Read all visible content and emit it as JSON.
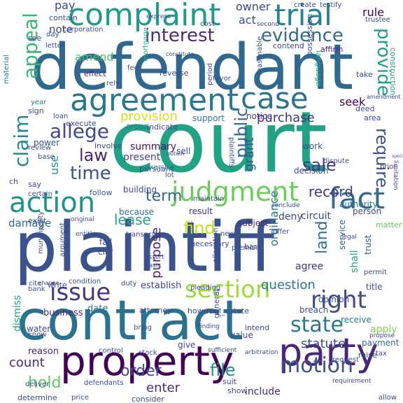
{
  "words": [
    {
      "t": "court",
      "c": "#22a284"
    },
    {
      "t": "plaintiff",
      "c": "#3b528b"
    },
    {
      "t": "defendant",
      "c": "#31688e"
    },
    {
      "t": "contract",
      "c": "#2c728e"
    },
    {
      "t": "property",
      "c": "#440154"
    },
    {
      "t": "party",
      "c": "#482777"
    },
    {
      "t": "agreement",
      "c": "#2a788e"
    },
    {
      "t": "complaint",
      "c": "#1e9b8a"
    },
    {
      "t": "trial",
      "c": "#26828e"
    },
    {
      "t": "case",
      "c": "#2c728e"
    },
    {
      "t": "judgment",
      "c": "#6ccd5a"
    },
    {
      "t": "action",
      "c": "#20928c"
    },
    {
      "t": "fact",
      "c": "#2f6c8e"
    },
    {
      "t": "issue",
      "c": "#443983"
    },
    {
      "t": "section",
      "c": "#9fda3a"
    },
    {
      "t": "right",
      "c": "#3e4a89"
    },
    {
      "t": "state",
      "c": "#2a788e"
    },
    {
      "t": "motion",
      "c": "#3b528b"
    },
    {
      "t": "interest",
      "c": "#472d7b"
    },
    {
      "t": "evidence",
      "c": "#31688e"
    },
    {
      "t": "provide",
      "c": "#1f9e89"
    },
    {
      "t": "claim",
      "c": "#25858e"
    },
    {
      "t": "appeal",
      "c": "#35b779"
    },
    {
      "t": "allege",
      "c": "#3e4a89"
    },
    {
      "t": "time",
      "c": "#3b528b"
    },
    {
      "t": "law",
      "c": "#482475"
    },
    {
      "t": "public",
      "c": "#31688e"
    },
    {
      "t": "sale",
      "c": "#453781"
    },
    {
      "t": "require",
      "c": "#3b528b"
    },
    {
      "t": "record",
      "c": "#443983"
    },
    {
      "t": "term",
      "c": "#31688e"
    },
    {
      "t": "lease",
      "c": "#22a884"
    },
    {
      "t": "find",
      "c": "#c2df23"
    },
    {
      "t": "land",
      "c": "#2c728e"
    },
    {
      "t": "order",
      "c": "#3e4a89"
    },
    {
      "t": "file",
      "c": "#20928c"
    },
    {
      "t": "hold",
      "c": "#5ec962"
    },
    {
      "t": "count",
      "c": "#482878"
    },
    {
      "t": "statute",
      "c": "#3e4a89"
    },
    {
      "t": "question",
      "c": "#2a788e"
    },
    {
      "t": "purchase",
      "c": "#46337e"
    },
    {
      "t": "provision",
      "c": "#d2e21b"
    },
    {
      "t": "amend",
      "c": "#4ac16d"
    },
    {
      "t": "grant",
      "c": "#38588c"
    },
    {
      "t": "purpose",
      "c": "#482475"
    },
    {
      "t": "pay",
      "c": "#3e4a89"
    },
    {
      "t": "use",
      "c": "#21918c"
    },
    {
      "t": "ordinance",
      "c": "#2a788e"
    },
    {
      "t": "rule",
      "c": "#440154"
    },
    {
      "t": "owner",
      "c": "#414487"
    },
    {
      "t": "act",
      "c": "#3b528b"
    },
    {
      "t": "seek",
      "c": "#440154"
    },
    {
      "t": "note",
      "c": "#3e4a89"
    },
    {
      "t": "damage",
      "c": "#31688e"
    },
    {
      "t": "summary",
      "c": "#471063"
    },
    {
      "t": "present",
      "c": "#414487"
    },
    {
      "t": "building",
      "c": "#3e4a89"
    },
    {
      "t": "because",
      "c": "#2c728e"
    },
    {
      "t": "result",
      "c": "#482878"
    },
    {
      "t": "subject",
      "c": "#46337e"
    },
    {
      "t": "deny",
      "c": "#3e4a89"
    },
    {
      "t": "circuit",
      "c": "#3e4a89"
    },
    {
      "t": "agree",
      "c": "#46337e"
    },
    {
      "t": "service",
      "c": "#31688e"
    },
    {
      "t": "trust",
      "c": "#3b528b"
    },
    {
      "t": "shall",
      "c": "#1f9e89"
    },
    {
      "t": "title",
      "c": "#3b528b"
    },
    {
      "t": "breach",
      "c": "#3e4a89"
    },
    {
      "t": "business",
      "c": "#482878"
    },
    {
      "t": "date",
      "c": "#2c728e"
    },
    {
      "t": "establish",
      "c": "#414487"
    },
    {
      "t": "opinion",
      "c": "#3e4a89"
    },
    {
      "t": "receive",
      "c": "#2a788e"
    },
    {
      "t": "payment",
      "c": "#31688e"
    },
    {
      "t": "apply",
      "c": "#7fd34e"
    },
    {
      "t": "enter",
      "c": "#472c7a"
    },
    {
      "t": "include",
      "c": "#482878"
    },
    {
      "t": "dismiss",
      "c": "#1fa088"
    },
    {
      "t": "reason",
      "c": "#482878"
    },
    {
      "t": "support",
      "c": "#2a788e"
    },
    {
      "t": "notice",
      "c": "#472d7b"
    },
    {
      "t": "sell",
      "c": "#3e4a89"
    },
    {
      "t": "authority",
      "c": "#2a788e"
    },
    {
      "t": "decision",
      "c": "#3e4a89"
    },
    {
      "t": "person",
      "c": "#3e4a89"
    },
    {
      "t": "matter",
      "c": "#5ec962"
    },
    {
      "t": "pursuant",
      "c": "#3e4a89"
    },
    {
      "t": "work",
      "c": "#3b528b"
    },
    {
      "t": "corporation",
      "c": "#3e4a89"
    },
    {
      "t": "contain",
      "c": "#3b528b"
    },
    {
      "t": "contend",
      "c": "#3e4a89"
    },
    {
      "t": "affirm",
      "c": "#482878"
    },
    {
      "t": "possession",
      "c": "#3b528b"
    },
    {
      "t": "language",
      "c": "#25ab82"
    },
    {
      "t": "construction",
      "c": "#1f9e89"
    },
    {
      "t": "reverse",
      "c": "#3e4a89"
    },
    {
      "t": "involve",
      "c": "#3e4a89"
    },
    {
      "t": "follow",
      "c": "#3b528b"
    },
    {
      "t": "argue",
      "c": "#2a788e"
    },
    {
      "t": "maintain",
      "c": "#3e4a89"
    },
    {
      "t": "lot",
      "c": "#3b528b"
    },
    {
      "t": "exercise",
      "c": "#2a788e"
    },
    {
      "t": "indicate",
      "c": "#3e4a89"
    },
    {
      "t": "execute",
      "c": "#3e4a89"
    },
    {
      "t": "effect",
      "c": "#482878"
    },
    {
      "t": "fee",
      "c": "#3b528b"
    },
    {
      "t": "mortgage",
      "c": "#25ab82"
    },
    {
      "t": "letter",
      "c": "#3e4a89"
    },
    {
      "t": "day",
      "c": "#3b528b"
    },
    {
      "t": "see",
      "c": "#3e4a89"
    },
    {
      "t": "material",
      "c": "#2a788e"
    },
    {
      "t": "year",
      "c": "#2a788e"
    },
    {
      "t": "sign",
      "c": "#3e4a89"
    },
    {
      "t": "loan",
      "c": "#3e4a89"
    },
    {
      "t": "power",
      "c": "#3b528b"
    },
    {
      "t": "review",
      "c": "#3e4a89"
    },
    {
      "t": "base",
      "c": "#3e4a89"
    },
    {
      "t": "say",
      "c": "#3e4a89"
    },
    {
      "t": "certain",
      "c": "#3b528b"
    },
    {
      "t": "exist",
      "c": "#3b528b"
    },
    {
      "t": "fail",
      "c": "#3e4a89"
    },
    {
      "t": "city",
      "c": "#3e4a89"
    },
    {
      "t": "cite",
      "c": "#3e4a89"
    },
    {
      "t": "bank",
      "c": "#3b528b"
    },
    {
      "t": "write",
      "c": "#3e4a89"
    },
    {
      "t": "water",
      "c": "#3e4a89"
    },
    {
      "t": "know",
      "c": "#3e4a89"
    },
    {
      "t": "deliver",
      "c": "#3e4a89"
    },
    {
      "t": "determine",
      "c": "#3e4a89"
    },
    {
      "t": "price",
      "c": "#3e4a89"
    },
    {
      "t": "defendants",
      "c": "#3e4a89"
    },
    {
      "t": "control",
      "c": "#3e4a89"
    },
    {
      "t": "consider",
      "c": "#3e4a89"
    },
    {
      "t": "give",
      "c": "#3e4a89"
    },
    {
      "t": "value",
      "c": "#3e4a89"
    },
    {
      "t": "intend",
      "c": "#3e4a89"
    },
    {
      "t": "however",
      "c": "#3e4a89"
    },
    {
      "t": "real_estate",
      "c": "#3e4a89"
    },
    {
      "t": "attorney",
      "c": "#3e4a89"
    },
    {
      "t": "general",
      "c": "#3b528b"
    },
    {
      "t": "necessary",
      "c": "#3e4a89"
    },
    {
      "t": "plaintiffs",
      "c": "#3e4a89"
    },
    {
      "t": "premise",
      "c": "#3e4a89"
    },
    {
      "t": "permit",
      "c": "#3e4a89"
    },
    {
      "t": "raise",
      "c": "#3e4a89"
    },
    {
      "t": "allow",
      "c": "#3e4a89"
    },
    {
      "t": "request",
      "c": "#3e4a89"
    },
    {
      "t": "requirement",
      "c": "#3e4a89"
    },
    {
      "t": "arbitration",
      "c": "#3e4a89"
    },
    {
      "t": "suit",
      "c": "#3e4a89"
    },
    {
      "t": "show",
      "c": "#3e4a89"
    },
    {
      "t": "sufficient",
      "c": "#3e4a89"
    },
    {
      "t": "stock",
      "c": "#3e4a89"
    },
    {
      "t": "bring",
      "c": "#3e4a89"
    },
    {
      "t": "duty",
      "c": "#3e4a89"
    },
    {
      "t": "condition",
      "c": "#3e4a89"
    },
    {
      "t": "change",
      "c": "#3e4a89"
    },
    {
      "t": "entitle",
      "c": "#3e4a89"
    },
    {
      "t": "original",
      "c": "#3e4a89"
    },
    {
      "t": "transaction",
      "c": "#3e4a89"
    },
    {
      "t": "pleading",
      "c": "#3e4a89"
    },
    {
      "t": "finding",
      "c": "#3e4a89"
    },
    {
      "t": "argument",
      "c": "#3e4a89"
    },
    {
      "t": "municipality",
      "c": "#3e4a89"
    },
    {
      "t": "assert",
      "c": "#3e4a89"
    },
    {
      "t": "basis",
      "c": "#3e4a89"
    },
    {
      "t": "legal",
      "c": "#3e4a89"
    },
    {
      "t": "offer",
      "c": "#3e4a89"
    },
    {
      "t": "propose",
      "c": "#3e4a89"
    },
    {
      "t": "new",
      "c": "#3e4a89"
    },
    {
      "t": "bar",
      "c": "#3e4a89"
    },
    {
      "t": "allegation",
      "c": "#3e4a89"
    },
    {
      "t": "limitation",
      "c": "#3e4a89"
    },
    {
      "t": "specific",
      "c": "#3e4a89"
    },
    {
      "t": "prior",
      "c": "#3e4a89"
    },
    {
      "t": "dispute",
      "c": "#3e4a89"
    },
    {
      "t": "area",
      "c": "#3e4a89"
    },
    {
      "t": "deed",
      "c": "#3e4a89"
    },
    {
      "t": "amendment",
      "c": "#3e4a89"
    },
    {
      "t": "take",
      "c": "#3e4a89"
    },
    {
      "t": "reasonable",
      "c": "#3e4a89"
    },
    {
      "t": "period",
      "c": "#3e4a89"
    },
    {
      "t": "favor",
      "c": "#3e4a89"
    },
    {
      "t": "cost",
      "c": "#3e4a89"
    },
    {
      "t": "second",
      "c": "#3e4a89"
    },
    {
      "t": "create",
      "c": "#3e4a89"
    },
    {
      "t": "testify",
      "c": "#3e4a89"
    },
    {
      "t": "trustee",
      "c": "#3e4a89"
    },
    {
      "t": "express",
      "c": "#3e4a89"
    },
    {
      "t": "constitute",
      "c": "#3e4a89"
    },
    {
      "t": "rely",
      "c": "#3e4a89"
    },
    {
      "t": "obtain",
      "c": "#3e4a89"
    },
    {
      "t": "conclude",
      "c": "#3e4a89"
    },
    {
      "t": "tax",
      "c": "#3e4a89"
    },
    {
      "t": "ch",
      "c": "#3e4a89"
    }
  ]
}
